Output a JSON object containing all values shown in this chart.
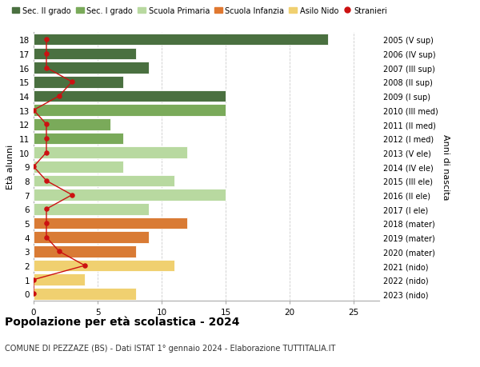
{
  "ages": [
    18,
    17,
    16,
    15,
    14,
    13,
    12,
    11,
    10,
    9,
    8,
    7,
    6,
    5,
    4,
    3,
    2,
    1,
    0
  ],
  "bar_values": [
    23,
    8,
    9,
    7,
    15,
    15,
    6,
    7,
    12,
    7,
    11,
    15,
    9,
    12,
    9,
    8,
    11,
    4,
    8
  ],
  "bar_colors": [
    "#4a7040",
    "#4a7040",
    "#4a7040",
    "#4a7040",
    "#4a7040",
    "#7aaa5a",
    "#7aaa5a",
    "#7aaa5a",
    "#b8d9a0",
    "#b8d9a0",
    "#b8d9a0",
    "#b8d9a0",
    "#b8d9a0",
    "#d97b35",
    "#d97b35",
    "#d97b35",
    "#f0d070",
    "#f0d070",
    "#f0d070"
  ],
  "stranieri_x": [
    1,
    1,
    1,
    3,
    2,
    0,
    1,
    1,
    1,
    0,
    1,
    3,
    1,
    1,
    1,
    2,
    4,
    0,
    0
  ],
  "right_labels": [
    "2005 (V sup)",
    "2006 (IV sup)",
    "2007 (III sup)",
    "2008 (II sup)",
    "2009 (I sup)",
    "2010 (III med)",
    "2011 (II med)",
    "2012 (I med)",
    "2013 (V ele)",
    "2014 (IV ele)",
    "2015 (III ele)",
    "2016 (II ele)",
    "2017 (I ele)",
    "2018 (mater)",
    "2019 (mater)",
    "2020 (mater)",
    "2021 (nido)",
    "2022 (nido)",
    "2023 (nido)"
  ],
  "legend_labels": [
    "Sec. II grado",
    "Sec. I grado",
    "Scuola Primaria",
    "Scuola Infanzia",
    "Asilo Nido",
    "Stranieri"
  ],
  "legend_colors": [
    "#4a7040",
    "#7aaa5a",
    "#b8d9a0",
    "#e07830",
    "#f0d070",
    "#cc1111"
  ],
  "ylabel_left": "Età alunni",
  "ylabel_right": "Anni di nascita",
  "title": "Popolazione per età scolastica - 2024",
  "subtitle": "COMUNE DI PEZZAZE (BS) - Dati ISTAT 1° gennaio 2024 - Elaborazione TUTTITALIA.IT",
  "xlim": [
    0,
    27
  ],
  "xticks": [
    0,
    5,
    10,
    15,
    20,
    25
  ],
  "stranieri_color": "#cc1111",
  "background_color": "#ffffff",
  "grid_color": "#cccccc"
}
